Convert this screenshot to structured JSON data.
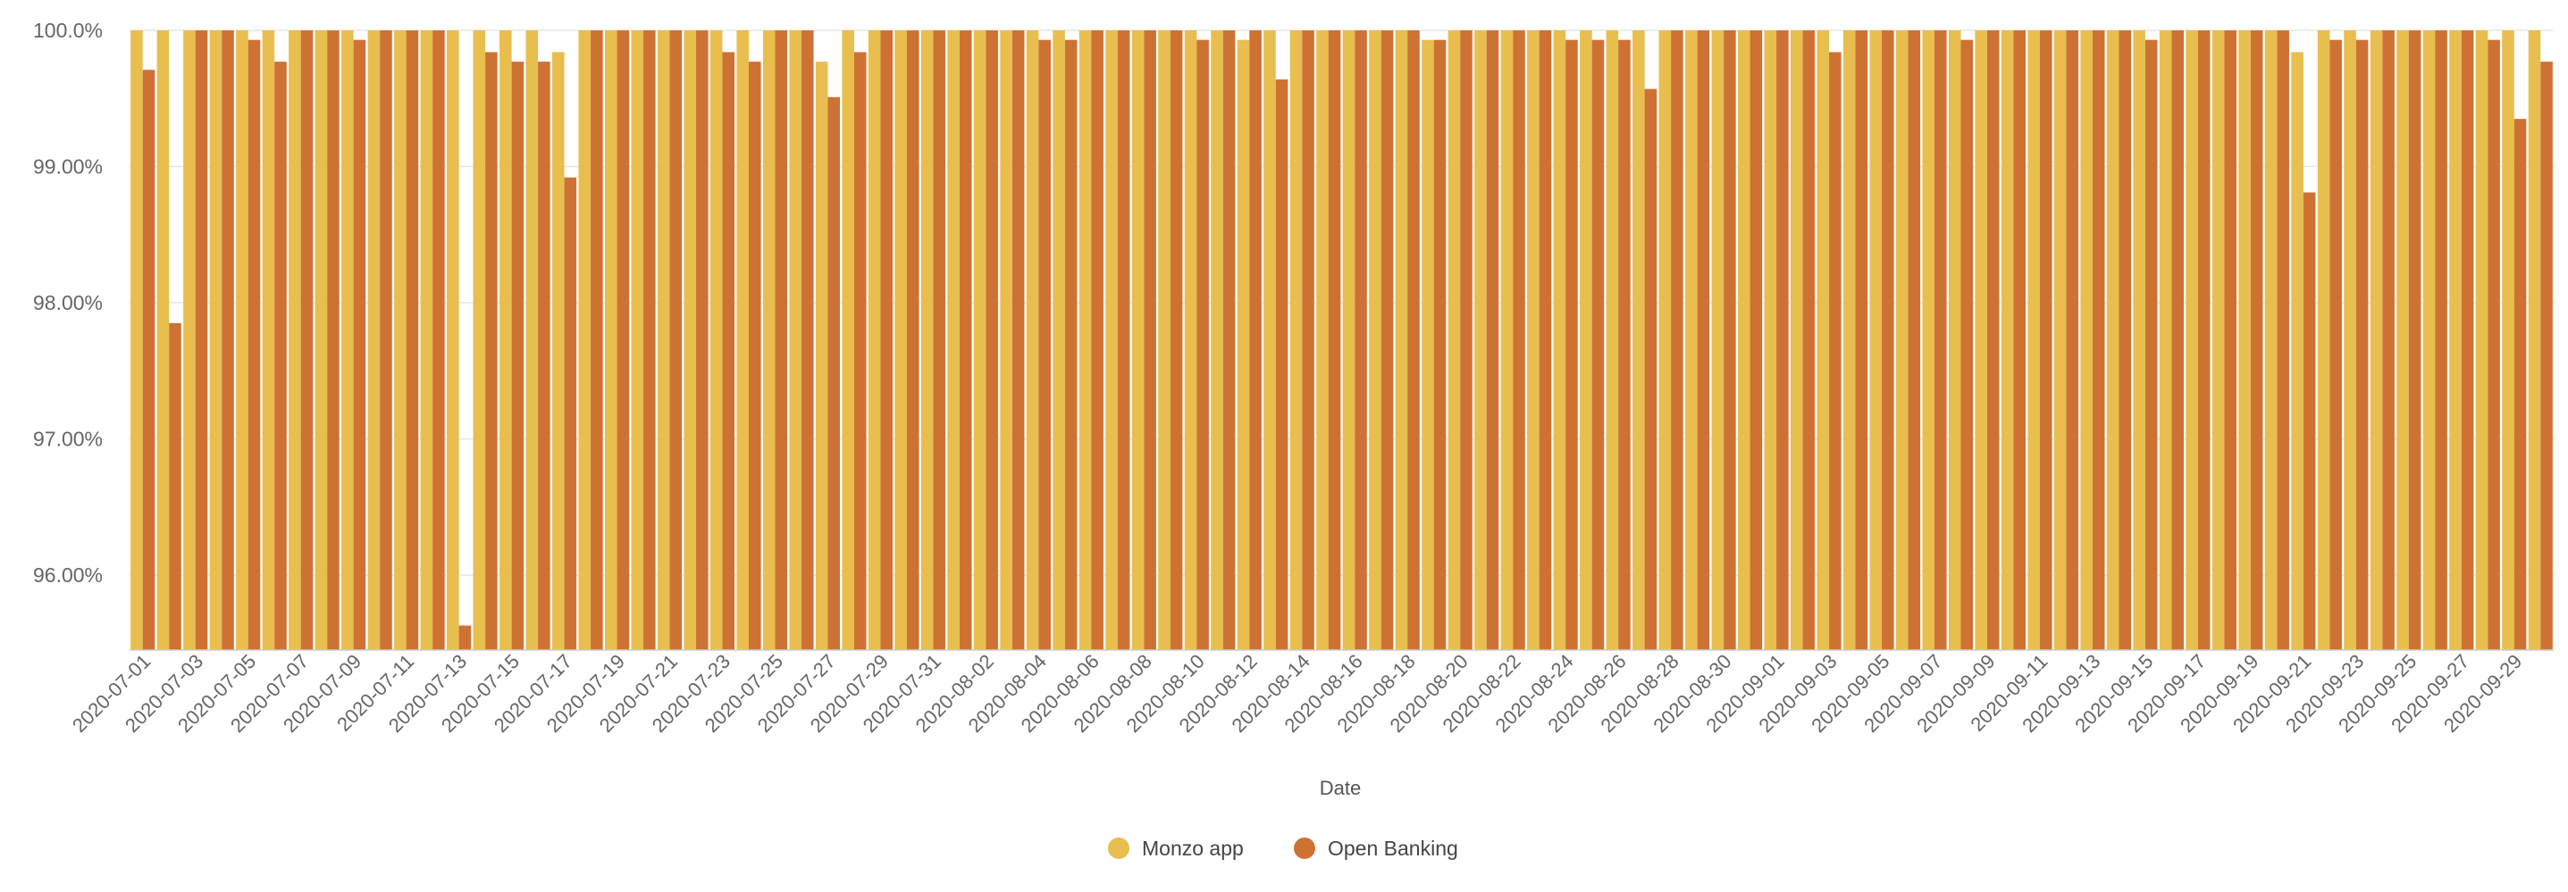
{
  "chart_data": {
    "type": "bar",
    "xlabel": "Date",
    "ylabel": "",
    "ylim": [
      95.45,
      100.0
    ],
    "y_ticks": [
      96,
      97,
      98,
      99,
      100
    ],
    "y_tick_labels": [
      "96.00%",
      "97.00%",
      "98.00%",
      "99.00%",
      "100.0%"
    ],
    "grid": true,
    "legend_position": "bottom-center",
    "categories": [
      "2020-07-01",
      "2020-07-02",
      "2020-07-03",
      "2020-07-04",
      "2020-07-05",
      "2020-07-06",
      "2020-07-07",
      "2020-07-08",
      "2020-07-09",
      "2020-07-10",
      "2020-07-11",
      "2020-07-12",
      "2020-07-13",
      "2020-07-14",
      "2020-07-15",
      "2020-07-16",
      "2020-07-17",
      "2020-07-18",
      "2020-07-19",
      "2020-07-20",
      "2020-07-21",
      "2020-07-22",
      "2020-07-23",
      "2020-07-24",
      "2020-07-25",
      "2020-07-26",
      "2020-07-27",
      "2020-07-28",
      "2020-07-29",
      "2020-07-30",
      "2020-07-31",
      "2020-08-01",
      "2020-08-02",
      "2020-08-03",
      "2020-08-04",
      "2020-08-05",
      "2020-08-06",
      "2020-08-07",
      "2020-08-08",
      "2020-08-09",
      "2020-08-10",
      "2020-08-11",
      "2020-08-12",
      "2020-08-13",
      "2020-08-14",
      "2020-08-15",
      "2020-08-16",
      "2020-08-17",
      "2020-08-18",
      "2020-08-19",
      "2020-08-20",
      "2020-08-21",
      "2020-08-22",
      "2020-08-23",
      "2020-08-24",
      "2020-08-25",
      "2020-08-26",
      "2020-08-27",
      "2020-08-28",
      "2020-08-29",
      "2020-08-30",
      "2020-08-31",
      "2020-09-01",
      "2020-09-02",
      "2020-09-03",
      "2020-09-04",
      "2020-09-05",
      "2020-09-06",
      "2020-09-07",
      "2020-09-08",
      "2020-09-09",
      "2020-09-10",
      "2020-09-11",
      "2020-09-12",
      "2020-09-13",
      "2020-09-14",
      "2020-09-15",
      "2020-09-16",
      "2020-09-17",
      "2020-09-18",
      "2020-09-19",
      "2020-09-20",
      "2020-09-21",
      "2020-09-22",
      "2020-09-23",
      "2020-09-24",
      "2020-09-25",
      "2020-09-26",
      "2020-09-27",
      "2020-09-28",
      "2020-09-29",
      "2020-09-30"
    ],
    "tick_labels": [
      "2020-07-01",
      "2020-07-03",
      "2020-07-05",
      "2020-07-07",
      "2020-07-09",
      "2020-07-11",
      "2020-07-13",
      "2020-07-15",
      "2020-07-17",
      "2020-07-19",
      "2020-07-21",
      "2020-07-23",
      "2020-07-25",
      "2020-07-27",
      "2020-07-29",
      "2020-07-31",
      "2020-08-02",
      "2020-08-04",
      "2020-08-06",
      "2020-08-08",
      "2020-08-10",
      "2020-08-12",
      "2020-08-14",
      "2020-08-16",
      "2020-08-18",
      "2020-08-20",
      "2020-08-22",
      "2020-08-24",
      "2020-08-26",
      "2020-08-28",
      "2020-08-30",
      "2020-09-01",
      "2020-09-03",
      "2020-09-05",
      "2020-09-07",
      "2020-09-09",
      "2020-09-11",
      "2020-09-13",
      "2020-09-15",
      "2020-09-17",
      "2020-09-19",
      "2020-09-21",
      "2020-09-23",
      "2020-09-25",
      "2020-09-27",
      "2020-09-29"
    ],
    "series": [
      {
        "name": "Monzo app",
        "color": "#E8BE4E",
        "values": [
          100,
          100,
          100,
          100,
          100,
          100,
          100,
          100,
          100,
          100,
          100,
          100,
          100,
          100,
          100,
          100,
          99.84,
          100,
          100,
          100,
          100,
          100,
          100,
          100,
          100,
          100,
          99.77,
          100,
          100,
          100,
          100,
          100,
          100,
          100,
          100,
          100,
          100,
          100,
          100,
          100,
          100,
          100,
          99.93,
          100,
          100,
          100,
          100,
          100,
          100,
          99.93,
          100,
          100,
          100,
          100,
          100,
          100,
          100,
          100,
          100,
          100,
          100,
          100,
          100,
          100,
          100,
          100,
          100,
          100,
          100,
          100,
          100,
          100,
          100,
          100,
          100,
          100,
          100,
          100,
          100,
          100,
          100,
          100,
          99.84,
          100,
          100,
          100,
          100,
          100,
          100,
          100,
          100,
          100
        ]
      },
      {
        "name": "Open Banking",
        "color": "#CE7234",
        "values": [
          99.71,
          97.85,
          100,
          100,
          99.93,
          99.77,
          100,
          100,
          99.93,
          100,
          100,
          100,
          95.63,
          99.84,
          99.77,
          99.77,
          98.92,
          100,
          100,
          100,
          100,
          100,
          99.84,
          99.77,
          100,
          100,
          99.51,
          99.84,
          100,
          100,
          100,
          100,
          100,
          100,
          99.93,
          99.93,
          100,
          100,
          100,
          100,
          99.93,
          100,
          100,
          99.64,
          100,
          100,
          100,
          100,
          100,
          99.93,
          100,
          100,
          100,
          100,
          99.93,
          99.93,
          99.93,
          99.57,
          100,
          100,
          100,
          100,
          100,
          100,
          99.84,
          100,
          100,
          100,
          100,
          99.93,
          100,
          100,
          100,
          100,
          100,
          100,
          99.93,
          100,
          100,
          100,
          100,
          100,
          98.81,
          99.93,
          99.93,
          100,
          100,
          100,
          100,
          99.93,
          99.35,
          99.77
        ]
      }
    ]
  }
}
